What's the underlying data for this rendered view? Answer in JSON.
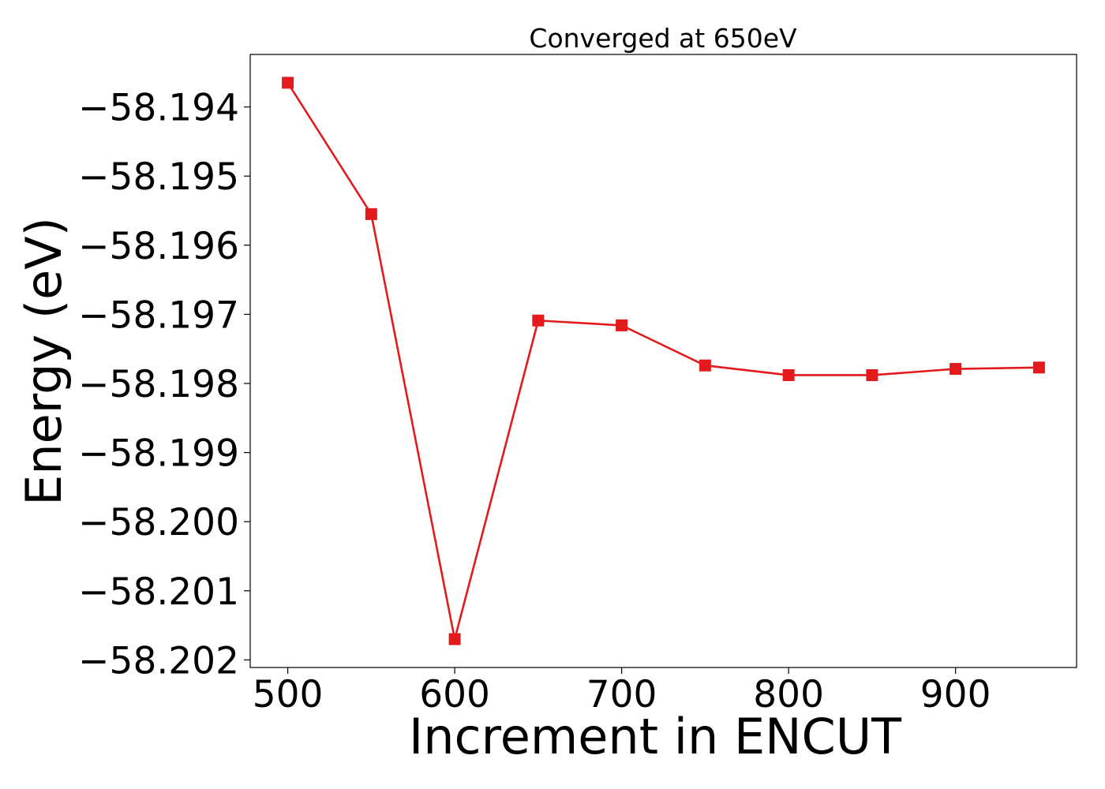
{
  "chart_data": {
    "type": "line",
    "title": "Converged at 650eV",
    "xlabel": "Increment in ENCUT",
    "ylabel": "Energy (eV)",
    "x": [
      500,
      550,
      600,
      650,
      700,
      750,
      800,
      850,
      900,
      950
    ],
    "series": [
      {
        "values": [
          -58.19365,
          -58.19555,
          -58.2017,
          -58.19709,
          -58.19716,
          -58.19774,
          -58.19788,
          -58.19788,
          -58.19779,
          -58.19777
        ],
        "color": "#e31a1c",
        "marker": "square"
      }
    ],
    "xticks": [
      500,
      600,
      700,
      800,
      900
    ],
    "xtick_labels": [
      "500",
      "600",
      "700",
      "800",
      "900"
    ],
    "yticks": [
      -58.194,
      -58.195,
      -58.196,
      -58.197,
      -58.198,
      -58.199,
      -58.2,
      -58.201,
      -58.202
    ],
    "ytick_labels": [
      "−58.194",
      "−58.195",
      "−58.196",
      "−58.197",
      "−58.198",
      "−58.199",
      "−58.200",
      "−58.201",
      "−58.202"
    ],
    "xlim": [
      477.5,
      972.5
    ],
    "ylim": [
      -58.20211,
      -58.19324
    ],
    "grid": false,
    "legend": false
  }
}
